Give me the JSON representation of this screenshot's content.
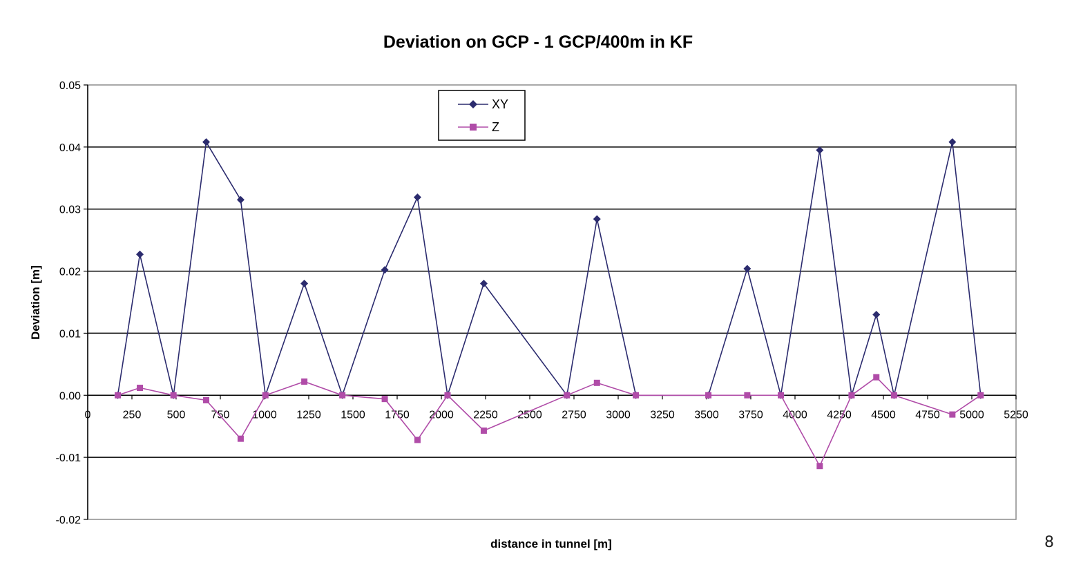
{
  "chart_data": {
    "type": "line",
    "title": "Deviation on GCP - 1 GCP/400m in KF",
    "xlabel": "distance in tunnel [m]",
    "ylabel": "Deviation [m]",
    "xlim": [
      0,
      5250
    ],
    "ylim": [
      -0.02,
      0.05
    ],
    "x_ticks": [
      0,
      250,
      500,
      750,
      1000,
      1250,
      1500,
      1750,
      2000,
      2250,
      2500,
      2750,
      3000,
      3250,
      3500,
      3750,
      4000,
      4250,
      4500,
      4750,
      5000,
      5250
    ],
    "x_tick_labels": [
      "0",
      "250",
      "500",
      "750",
      "1000",
      "1250",
      "1500",
      "1750",
      "2000",
      "2250",
      "2500",
      "2750",
      "3000",
      "3250",
      "3500",
      "3750",
      "4000",
      "4250",
      "4500",
      "4750",
      "5000",
      "5250"
    ],
    "y_ticks": [
      -0.02,
      -0.01,
      0.0,
      0.01,
      0.02,
      0.03,
      0.04,
      0.05
    ],
    "y_tick_labels": [
      "-0.02",
      "-0.01",
      "0.00",
      "0.01",
      "0.02",
      "0.03",
      "0.04",
      "0.05"
    ],
    "grid": "horizontal",
    "legend_position": "top-center",
    "series": [
      {
        "name": "XY",
        "color": "#2b2b6e",
        "marker": "diamond",
        "x": [
          170,
          295,
          485,
          670,
          865,
          1005,
          1225,
          1440,
          1680,
          1865,
          2035,
          2240,
          2710,
          2880,
          3100,
          3510,
          3730,
          3920,
          4140,
          4320,
          4460,
          4560,
          4890,
          5050
        ],
        "values": [
          0.0,
          0.0227,
          0.0,
          0.0408,
          0.0315,
          0.0,
          0.018,
          0.0,
          0.0202,
          0.0319,
          0.0,
          0.018,
          0.0,
          0.0284,
          0.0,
          0.0,
          0.0204,
          0.0,
          0.0395,
          0.0,
          0.013,
          0.0,
          0.0408,
          0.0
        ]
      },
      {
        "name": "Z",
        "color": "#b04ca8",
        "marker": "square",
        "x": [
          170,
          295,
          485,
          670,
          865,
          1005,
          1225,
          1440,
          1680,
          1865,
          2035,
          2240,
          2710,
          2880,
          3100,
          3510,
          3730,
          3920,
          4140,
          4320,
          4460,
          4560,
          4890,
          5050
        ],
        "values": [
          0.0,
          0.0012,
          0.0,
          -0.0008,
          -0.007,
          0.0,
          0.0022,
          0.0,
          -0.0006,
          -0.0072,
          0.0,
          -0.0057,
          0.0,
          0.002,
          0.0,
          0.0,
          0.0,
          0.0,
          -0.0114,
          0.0,
          0.0029,
          0.0,
          -0.0031,
          0.0
        ]
      }
    ]
  },
  "page_number": "8"
}
